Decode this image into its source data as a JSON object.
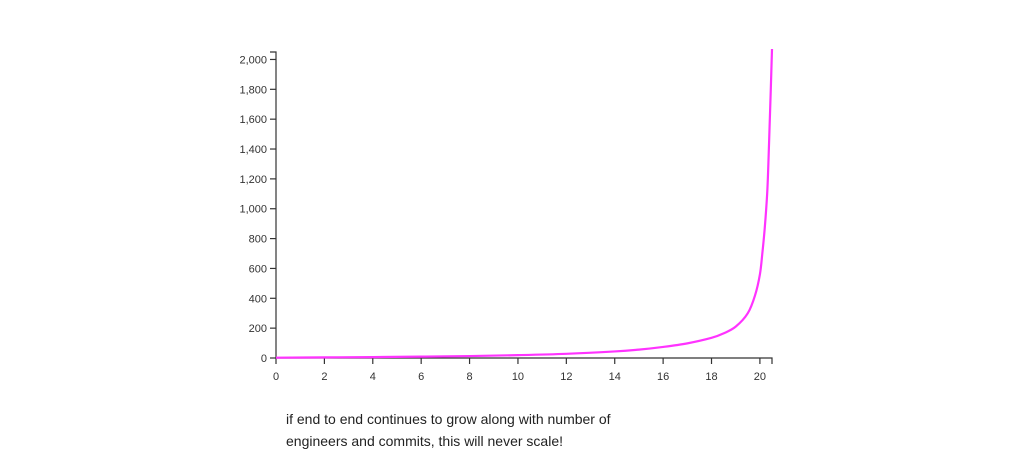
{
  "chart_data": {
    "type": "line",
    "title": "",
    "xlabel": "",
    "ylabel": "",
    "xlim": [
      0,
      20.5
    ],
    "ylim": [
      0,
      2050
    ],
    "x_ticks": [
      0,
      2,
      4,
      6,
      8,
      10,
      12,
      14,
      16,
      18,
      20
    ],
    "x_tick_labels": [
      "0",
      "2",
      "4",
      "6",
      "8",
      "10",
      "12",
      "14",
      "16",
      "18",
      "20"
    ],
    "y_ticks": [
      0,
      200,
      400,
      600,
      800,
      1000,
      1200,
      1400,
      1600,
      1800,
      2000
    ],
    "y_tick_labels": [
      "0",
      "200",
      "400",
      "600",
      "800",
      "1,000",
      "1,200",
      "1,400",
      "1,600",
      "1,800",
      "2,000"
    ],
    "grid": false,
    "legend": "none",
    "series": [
      {
        "color": "#ff33ff",
        "x": [
          0,
          2,
          4,
          6,
          8,
          10,
          12,
          14,
          15,
          16,
          17,
          18,
          18.5,
          19,
          19.5,
          19.8,
          20.0,
          20.1,
          20.2,
          20.3,
          20.35,
          20.4,
          20.45,
          20.5
        ],
        "y": [
          2,
          4,
          6,
          9,
          13,
          19,
          28,
          44,
          56,
          74,
          98,
          135,
          165,
          210,
          300,
          420,
          560,
          700,
          870,
          1100,
          1300,
          1550,
          1800,
          2070
        ]
      }
    ]
  },
  "caption": {
    "line1": "if end to end continues to grow along with number of",
    "line2": "engineers and commits, this will never scale!"
  }
}
